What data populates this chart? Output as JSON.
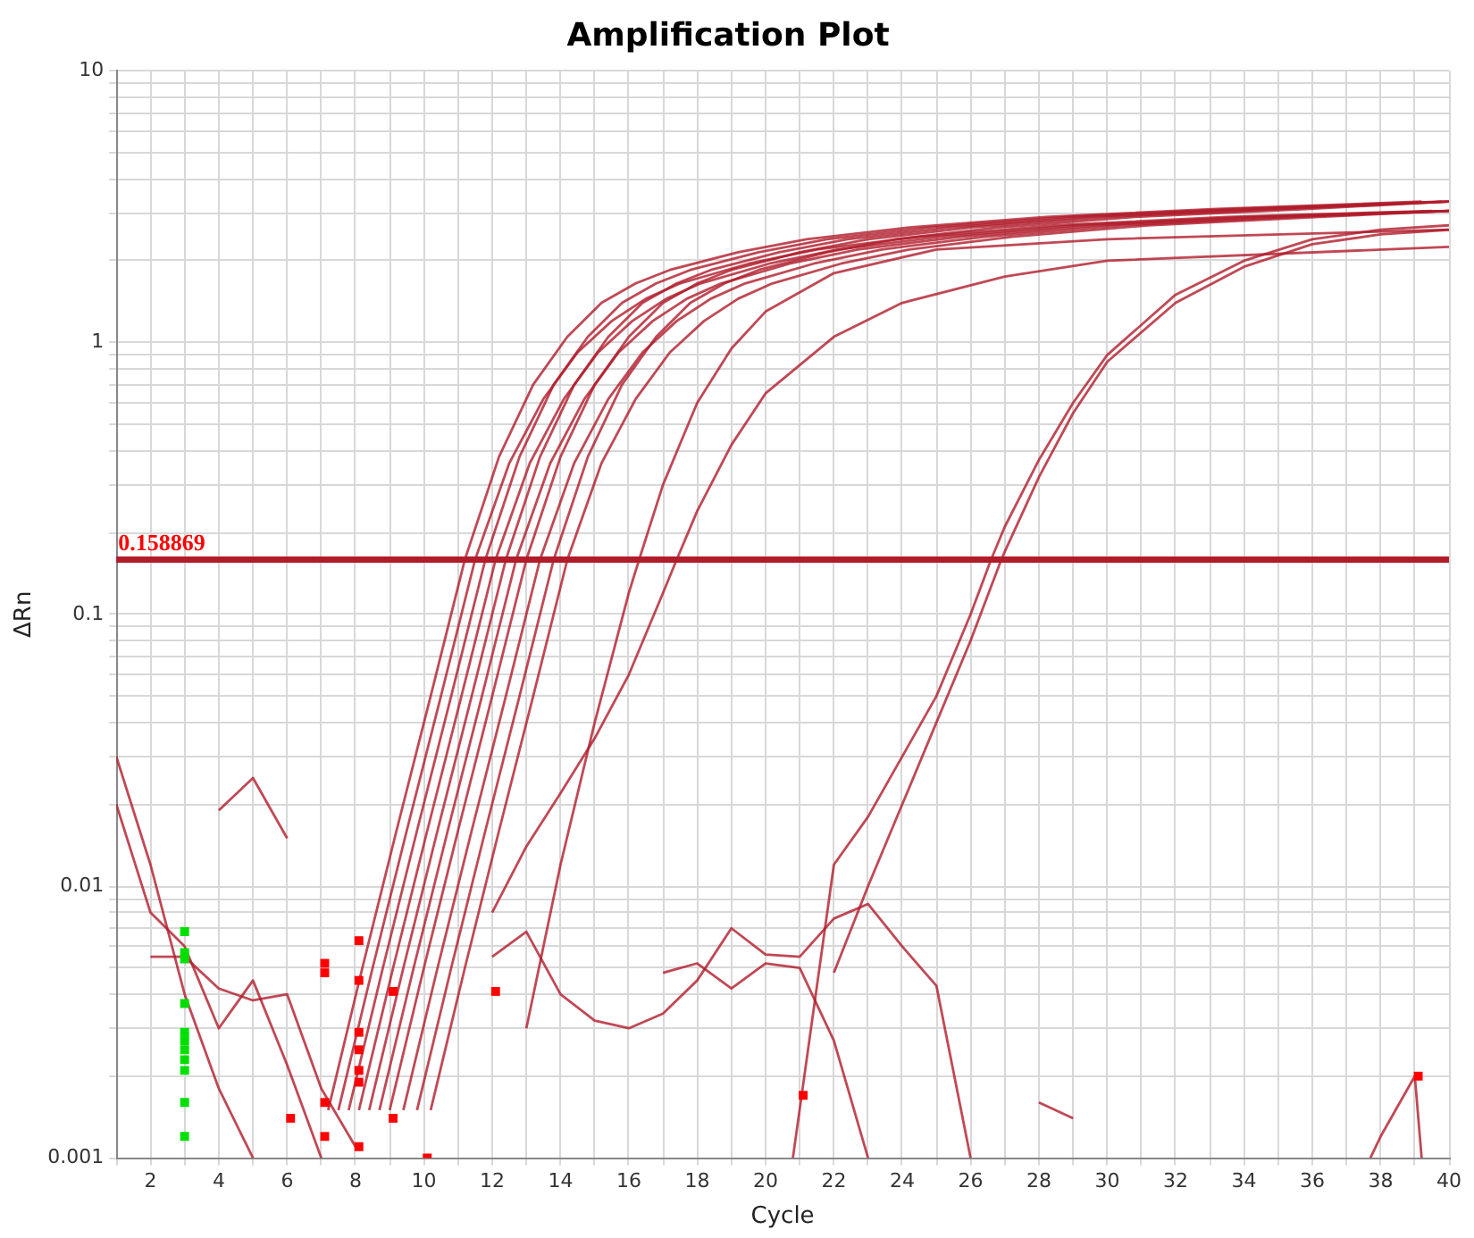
{
  "chart_data": {
    "type": "line",
    "title": "Amplification Plot",
    "xlabel": "Cycle",
    "ylabel": "ΔRn",
    "log": "y",
    "grid": true,
    "legend": false,
    "marker": "none",
    "line_style": "solid",
    "xlim": [
      1,
      40
    ],
    "xticks": [
      {
        "value": 1,
        "label": null
      },
      2,
      {
        "value": 3,
        "label": null
      },
      4,
      {
        "value": 5,
        "label": null
      },
      6,
      {
        "value": 7,
        "label": null
      },
      8,
      {
        "value": 9,
        "label": null
      },
      10,
      {
        "value": 11,
        "label": null
      },
      12,
      {
        "value": 13,
        "label": null
      },
      14,
      {
        "value": 15,
        "label": null
      },
      16,
      {
        "value": 17,
        "label": null
      },
      18,
      {
        "value": 19,
        "label": null
      },
      20,
      {
        "value": 21,
        "label": null
      },
      22,
      {
        "value": 23,
        "label": null
      },
      24,
      {
        "value": 25,
        "label": null
      },
      26,
      {
        "value": 27,
        "label": null
      },
      28,
      {
        "value": 29,
        "label": null
      },
      30,
      {
        "value": 31,
        "label": null
      },
      32,
      {
        "value": 33,
        "label": null
      },
      34,
      {
        "value": 35,
        "label": null
      },
      36,
      {
        "value": 37,
        "label": null
      },
      38,
      {
        "value": 39,
        "label": null
      },
      40
    ],
    "ylim": [
      0.001,
      10
    ],
    "yticks": [
      0.001,
      {
        "value": 0.002,
        "label": null
      },
      {
        "value": 0.003,
        "label": null
      },
      {
        "value": 0.004,
        "label": null
      },
      {
        "value": 0.005,
        "label": null
      },
      {
        "value": 0.006,
        "label": null
      },
      {
        "value": 0.007,
        "label": null
      },
      {
        "value": 0.008,
        "label": null
      },
      {
        "value": 0.009,
        "label": null
      },
      0.01,
      {
        "value": 0.02,
        "label": null
      },
      {
        "value": 0.03,
        "label": null
      },
      {
        "value": 0.04,
        "label": null
      },
      {
        "value": 0.05,
        "label": null
      },
      {
        "value": 0.06,
        "label": null
      },
      {
        "value": 0.07,
        "label": null
      },
      {
        "value": 0.08,
        "label": null
      },
      {
        "value": 0.09,
        "label": null
      },
      0.1,
      {
        "value": 0.2,
        "label": null
      },
      {
        "value": 0.3,
        "label": null
      },
      {
        "value": 0.4,
        "label": null
      },
      {
        "value": 0.5,
        "label": null
      },
      {
        "value": 0.6,
        "label": null
      },
      {
        "value": 0.7,
        "label": null
      },
      {
        "value": 0.8,
        "label": null
      },
      {
        "value": 0.9,
        "label": null
      },
      1,
      {
        "value": 2,
        "label": null
      },
      {
        "value": 3,
        "label": null
      },
      {
        "value": 4,
        "label": null
      },
      {
        "value": 5,
        "label": null
      },
      {
        "value": 6,
        "label": null
      },
      {
        "value": 7,
        "label": null
      },
      {
        "value": 8,
        "label": null
      },
      {
        "value": 9,
        "label": null
      },
      10
    ],
    "ref_lines": [
      {
        "axis": "y",
        "value": 0.158869,
        "label": "0.158869",
        "color": "#b01c2a"
      }
    ],
    "series": [
      {
        "color": "#b01c2a",
        "x": [
          7.2,
          8.2,
          9.2,
          10.2,
          11.2,
          12.2,
          13.2,
          14.2,
          15.2,
          16.2,
          17.2,
          19.2,
          21.2,
          24.2,
          28.2,
          33.2,
          39.2
        ],
        "values": [
          0.0015,
          0.005,
          0.016,
          0.05,
          0.159,
          0.38,
          0.7,
          1.05,
          1.4,
          1.65,
          1.85,
          2.15,
          2.4,
          2.65,
          2.9,
          3.1,
          3.3
        ]
      },
      {
        "color": "#b01c2a",
        "x": [
          7.5,
          8.5,
          9.5,
          10.5,
          11.5,
          12.5,
          13.5,
          14.5,
          15.5,
          16.5,
          17.5,
          19.5,
          21.5,
          24.5,
          28.5,
          33.5,
          39.5
        ],
        "values": [
          0.0015,
          0.005,
          0.016,
          0.05,
          0.159,
          0.36,
          0.62,
          0.92,
          1.2,
          1.45,
          1.65,
          1.95,
          2.2,
          2.45,
          2.7,
          2.9,
          3.05
        ]
      },
      {
        "color": "#b01c2a",
        "x": [
          7.8,
          8.8,
          9.8,
          10.8,
          11.8,
          12.8,
          13.8,
          14.8,
          15.8,
          16.8,
          17.8,
          19.8,
          21.8,
          24.8,
          28.8,
          33.8,
          39.8
        ],
        "values": [
          0.0015,
          0.005,
          0.016,
          0.05,
          0.159,
          0.38,
          0.7,
          1.05,
          1.4,
          1.65,
          1.85,
          2.15,
          2.4,
          2.65,
          2.9,
          3.1,
          3.3
        ]
      },
      {
        "color": "#b01c2a",
        "x": [
          8.1,
          9.1,
          10.1,
          11.1,
          12.1,
          13.1,
          14.1,
          15.1,
          16.1,
          17.1,
          18.1,
          20.1,
          22.1,
          25.1,
          29.1,
          34.1,
          40
        ],
        "values": [
          0.0015,
          0.005,
          0.016,
          0.05,
          0.159,
          0.36,
          0.62,
          0.92,
          1.2,
          1.45,
          1.65,
          1.95,
          2.2,
          2.45,
          2.7,
          2.9,
          3.05
        ]
      },
      {
        "color": "#b01c2a",
        "x": [
          8.4,
          9.4,
          10.4,
          11.4,
          12.4,
          13.4,
          14.4,
          15.4,
          16.4,
          17.4,
          18.4,
          20.4,
          22.4,
          25.4,
          29.4,
          34.4,
          40
        ],
        "values": [
          0.0015,
          0.005,
          0.016,
          0.05,
          0.159,
          0.38,
          0.7,
          1.05,
          1.4,
          1.65,
          1.85,
          2.15,
          2.4,
          2.65,
          2.9,
          3.1,
          3.3
        ]
      },
      {
        "color": "#b01c2a",
        "x": [
          8.7,
          9.7,
          10.7,
          11.7,
          12.7,
          13.7,
          14.7,
          15.7,
          16.7,
          17.7,
          18.7,
          20.7,
          22.7,
          25.7,
          29.7,
          34.7,
          40
        ],
        "values": [
          0.0015,
          0.005,
          0.016,
          0.05,
          0.159,
          0.36,
          0.62,
          0.92,
          1.2,
          1.45,
          1.65,
          1.95,
          2.2,
          2.45,
          2.7,
          2.9,
          3.05
        ]
      },
      {
        "color": "#b01c2a",
        "x": [
          9,
          10,
          11,
          12,
          13,
          14,
          15,
          16,
          17,
          18,
          19,
          21,
          23,
          26,
          30,
          35,
          40
        ],
        "values": [
          0.0015,
          0.005,
          0.016,
          0.05,
          0.159,
          0.38,
          0.7,
          1.05,
          1.4,
          1.65,
          1.85,
          2.15,
          2.4,
          2.65,
          2.9,
          3.1,
          3.3
        ]
      },
      {
        "color": "#b01c2a",
        "x": [
          9.4,
          10.4,
          11.4,
          12.4,
          13.4,
          14.4,
          15.4,
          16.4,
          17.4,
          18.4,
          19.4,
          21.4,
          23.4,
          26.4,
          30.4,
          35.4,
          40
        ],
        "values": [
          0.0015,
          0.005,
          0.016,
          0.05,
          0.159,
          0.36,
          0.62,
          0.92,
          1.2,
          1.45,
          1.65,
          1.95,
          2.2,
          2.45,
          2.7,
          2.9,
          3.05
        ]
      },
      {
        "color": "#b01c2a",
        "x": [
          9.8,
          10.8,
          11.8,
          12.8,
          13.8,
          14.8,
          15.8,
          16.8,
          17.8,
          18.8,
          19.8,
          21.8,
          23.8,
          26.8,
          30.8,
          35.8,
          40
        ],
        "values": [
          0.0015,
          0.005,
          0.016,
          0.05,
          0.159,
          0.38,
          0.7,
          1.05,
          1.4,
          1.65,
          1.85,
          2.15,
          2.4,
          2.65,
          2.9,
          3.1,
          3.3
        ]
      },
      {
        "color": "#b01c2a",
        "x": [
          10.2,
          11.2,
          12.2,
          13.2,
          14.2,
          15.2,
          16.2,
          17.2,
          18.2,
          19.2,
          20.2,
          22.2,
          24.2,
          27.2,
          31.2,
          36.2,
          40
        ],
        "values": [
          0.0015,
          0.005,
          0.016,
          0.05,
          0.159,
          0.36,
          0.62,
          0.92,
          1.2,
          1.45,
          1.65,
          1.95,
          2.2,
          2.45,
          2.7,
          2.9,
          3.05
        ]
      },
      {
        "color": "#b01c2a",
        "x": [
          13,
          14,
          15,
          16,
          16.3,
          17,
          18,
          19,
          20,
          22,
          25,
          30,
          40
        ],
        "values": [
          0.003,
          0.012,
          0.04,
          0.12,
          0.159,
          0.3,
          0.6,
          0.95,
          1.3,
          1.8,
          2.2,
          2.4,
          2.6
        ]
      },
      {
        "color": "#b01c2a",
        "x": [
          12,
          13,
          14,
          15,
          16,
          17,
          17.4,
          18,
          19,
          20,
          22,
          24,
          27,
          30,
          40
        ],
        "values": [
          0.008,
          0.014,
          0.022,
          0.035,
          0.06,
          0.12,
          0.159,
          0.24,
          0.42,
          0.65,
          1.05,
          1.4,
          1.75,
          2.0,
          2.25
        ]
      },
      {
        "color": "#b01c2a",
        "x": [
          20.8,
          22,
          23,
          24,
          25,
          26,
          26.6,
          27,
          28,
          29,
          30,
          32,
          34,
          36,
          38,
          40
        ],
        "values": [
          0.001,
          0.012,
          0.018,
          0.03,
          0.05,
          0.1,
          0.159,
          0.21,
          0.37,
          0.6,
          0.9,
          1.5,
          2.0,
          2.4,
          2.6,
          2.7
        ]
      },
      {
        "color": "#b01c2a",
        "x": [
          22,
          23,
          24,
          25,
          26,
          26.9,
          27,
          28,
          29,
          30,
          32,
          34,
          36,
          38,
          40
        ],
        "values": [
          0.0048,
          0.01,
          0.02,
          0.04,
          0.08,
          0.159,
          0.17,
          0.32,
          0.55,
          0.85,
          1.4,
          1.9,
          2.3,
          2.5,
          2.6
        ]
      },
      {
        "color": "#b01c2a",
        "x": [
          12,
          13,
          14,
          15,
          16,
          17,
          18,
          19,
          20,
          21,
          22,
          23,
          24,
          25,
          26
        ],
        "values": [
          0.0055,
          0.0068,
          0.004,
          0.0032,
          0.003,
          0.0034,
          0.0045,
          0.007,
          0.0056,
          0.0055,
          0.0076,
          0.0086,
          0.006,
          0.0043,
          0.001
        ]
      },
      {
        "color": "#b01c2a",
        "x": [
          17,
          18,
          19,
          20,
          21,
          22,
          23
        ],
        "values": [
          0.0048,
          0.0052,
          0.0042,
          0.0052,
          0.005,
          0.0027,
          0.001
        ]
      },
      {
        "color": "#b01c2a",
        "x": [
          4,
          5,
          6
        ],
        "values": [
          0.019,
          0.025,
          0.015
        ]
      },
      {
        "color": "#b01c2a",
        "x": [
          1,
          2,
          3,
          4,
          5
        ],
        "values": [
          0.03,
          0.012,
          0.004,
          0.0018,
          0.001
        ]
      },
      {
        "color": "#b01c2a",
        "x": [
          1,
          2,
          3,
          4,
          5,
          6,
          7
        ],
        "values": [
          0.02,
          0.008,
          0.006,
          0.003,
          0.0045,
          0.0022,
          0.001
        ]
      },
      {
        "color": "#b01c2a",
        "x": [
          2,
          3,
          4,
          5,
          6,
          7,
          8
        ],
        "values": [
          0.0055,
          0.0055,
          0.0042,
          0.0038,
          0.004,
          0.0018,
          0.0011
        ]
      },
      {
        "color": "#b01c2a",
        "x": [
          28,
          29
        ],
        "values": [
          0.0016,
          0.0014
        ]
      },
      {
        "color": "#b01c2a",
        "x": [
          37.7,
          38,
          39,
          39.2
        ],
        "values": [
          0.001,
          0.0012,
          0.002,
          0.001
        ]
      },
      {
        "type": "scatter",
        "marker": "square",
        "color": "#00e000",
        "x": [
          3,
          3,
          3,
          3,
          3,
          3,
          3,
          3,
          3,
          3,
          3
        ],
        "values": [
          0.0068,
          0.0057,
          0.0054,
          0.0037,
          0.0029,
          0.0027,
          0.0025,
          0.0023,
          0.0021,
          0.0016,
          0.0012
        ]
      },
      {
        "type": "scatter",
        "marker": "square",
        "color": "#ff0000",
        "x": [
          6.1,
          7.1,
          7.1,
          7.1,
          7.1,
          8.1,
          8.1,
          8.1,
          8.1,
          8.1,
          8.1,
          8.1,
          9.1,
          9.1,
          10.1,
          12.1,
          21.1,
          39.1
        ],
        "values": [
          0.0014,
          0.0052,
          0.0048,
          0.0016,
          0.0012,
          0.0063,
          0.0045,
          0.0029,
          0.0025,
          0.0021,
          0.0019,
          0.0011,
          0.0041,
          0.0014,
          0.001,
          0.0041,
          0.0017,
          0.002
        ]
      }
    ]
  }
}
